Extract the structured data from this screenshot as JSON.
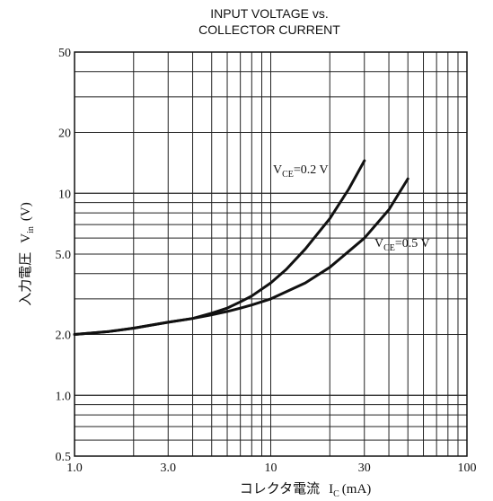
{
  "chart_data": {
    "type": "line",
    "title_line1": "INPUT VOLTAGE vs.",
    "title_line2": "COLLECTOR CURRENT",
    "xlabel_prefix": "コレクタ電流",
    "xlabel_symbol": "I",
    "xlabel_sub": "C",
    "xlabel_unit": "(mA)",
    "ylabel_prefix": "入力電圧",
    "ylabel_symbol": "V",
    "ylabel_sub": "in",
    "ylabel_unit": "(V)",
    "x_scale": "log",
    "y_scale": "log",
    "xlim": [
      1,
      100
    ],
    "ylim": [
      0.5,
      50
    ],
    "grid": true,
    "x_ticks": [
      {
        "value": 1,
        "label": "1.0"
      },
      {
        "value": 3,
        "label": "3.0"
      },
      {
        "value": 10,
        "label": "10"
      },
      {
        "value": 30,
        "label": "30"
      },
      {
        "value": 100,
        "label": "100"
      }
    ],
    "y_ticks": [
      {
        "value": 0.5,
        "label": "0.5"
      },
      {
        "value": 1,
        "label": "1.0"
      },
      {
        "value": 2,
        "label": "2.0"
      },
      {
        "value": 5,
        "label": "5.0"
      },
      {
        "value": 10,
        "label": "10"
      },
      {
        "value": 20,
        "label": "20"
      },
      {
        "value": 50,
        "label": "50"
      }
    ],
    "series": [
      {
        "name": "V_CE=0.2 V",
        "label_symbol": "V",
        "label_sub": "CE",
        "label_value": "=0.2 V",
        "x": [
          1.0,
          1.5,
          2.0,
          3.0,
          4.0,
          5.0,
          6.0,
          7.0,
          8.0,
          10.0,
          12.0,
          15.0,
          20.0,
          25.0,
          30.0
        ],
        "y": [
          2.0,
          2.07,
          2.15,
          2.3,
          2.4,
          2.55,
          2.7,
          2.9,
          3.1,
          3.6,
          4.2,
          5.3,
          7.5,
          10.5,
          14.5
        ]
      },
      {
        "name": "V_CE=0.5 V",
        "label_symbol": "V",
        "label_sub": "CE",
        "label_value": "=0.5 V",
        "x": [
          1.0,
          1.5,
          2.0,
          3.0,
          4.0,
          5.0,
          6.0,
          7.0,
          8.0,
          10.0,
          15.0,
          20.0,
          30.0,
          40.0,
          50.0
        ],
        "y": [
          2.0,
          2.07,
          2.15,
          2.3,
          2.4,
          2.5,
          2.6,
          2.7,
          2.8,
          3.0,
          3.6,
          4.3,
          6.0,
          8.3,
          11.8
        ]
      }
    ]
  }
}
